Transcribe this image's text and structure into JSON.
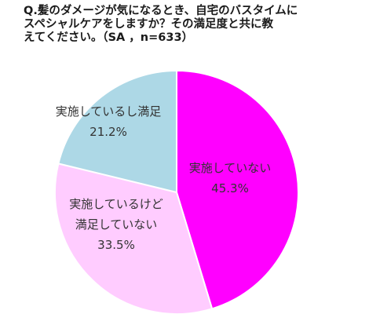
{
  "chart_data": {
    "type": "pie",
    "title": "Q.髪のダメージが気になるとき、自宅のバスタイムに\nスペシャルケアをしますか？その満足度と共に教\nえてください。（SA ，n=633）",
    "slices": [
      {
        "label": "実施していない",
        "value": 45.3,
        "value_label": "45.3%",
        "color": "#ff00ff"
      },
      {
        "label": "実施しているけど\n満足していない",
        "value": 33.5,
        "value_label": "33.5%",
        "color": "#ffccff"
      },
      {
        "label": "実施しているし満足",
        "value": 21.2,
        "value_label": "21.2%",
        "color": "#add8e6"
      }
    ],
    "start_angle": "12 o'clock",
    "direction": "clockwise",
    "legend": "none"
  }
}
